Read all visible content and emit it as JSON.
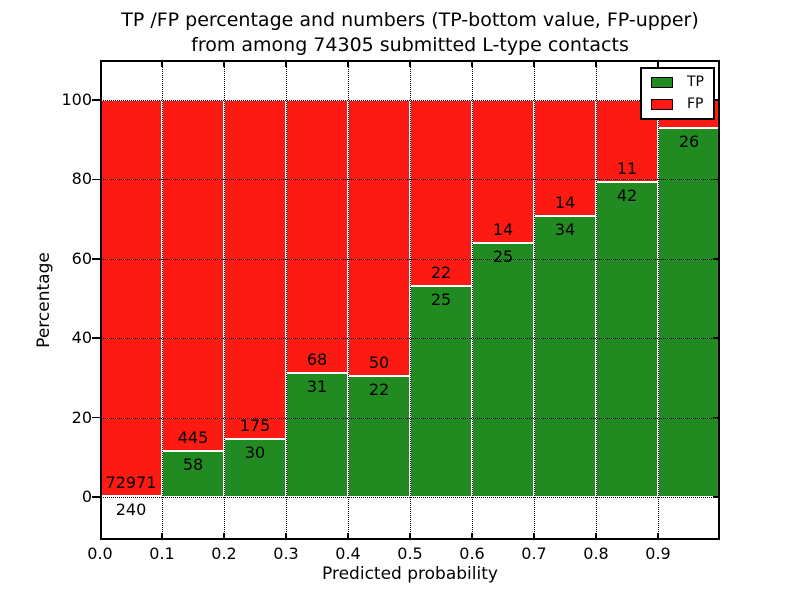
{
  "title": {
    "line1": "TP /FP percentage and numbers (TP-bottom value, FP-upper)",
    "line2": "from among 74305 submitted L-type contacts"
  },
  "chart_data": {
    "type": "bar",
    "stacked": true,
    "title": "TP /FP percentage and numbers (TP-bottom value, FP-upper) from among 74305 submitted L-type contacts",
    "xlabel": "Predicted probability",
    "ylabel": "Percentage",
    "bins": [
      "0.0-0.1",
      "0.1-0.2",
      "0.2-0.3",
      "0.3-0.4",
      "0.4-0.5",
      "0.5-0.6",
      "0.6-0.7",
      "0.7-0.8",
      "0.8-0.9",
      "0.9-1.0"
    ],
    "series": [
      {
        "name": "TP",
        "color": "#218a21",
        "counts": [
          240,
          58,
          30,
          31,
          22,
          25,
          25,
          34,
          42,
          26
        ]
      },
      {
        "name": "FP",
        "color": "#fc1a12",
        "counts": [
          72971,
          445,
          175,
          68,
          50,
          22,
          14,
          14,
          11,
          2
        ]
      }
    ],
    "bar_display": "Each bar normalized to 100%: TP percent on bottom (green), FP percent on top (red); counts printed at the TP/FP boundary (FP above, TP below)",
    "total_submitted": 74305,
    "xticks": [
      "0.0",
      "0.1",
      "0.2",
      "0.3",
      "0.4",
      "0.5",
      "0.6",
      "0.7",
      "0.8",
      "0.9"
    ],
    "yticks": [
      0,
      20,
      40,
      60,
      80,
      100
    ],
    "xlim": [
      0.0,
      1.0
    ],
    "ylim": [
      -11,
      110
    ],
    "grid": "dotted black, drawn above bars",
    "legend": {
      "position": "upper right",
      "entries": [
        "TP",
        "FP"
      ]
    }
  }
}
